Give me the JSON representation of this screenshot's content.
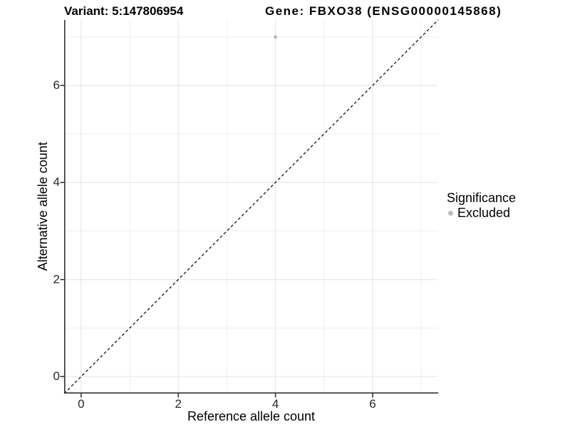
{
  "chart_data": {
    "type": "scatter",
    "title_left": "Variant: 5:147806954",
    "title_right": "Gene: FBXO38 (ENSG00000145868)",
    "xlabel": "Reference allele count",
    "ylabel": "Alternative allele count",
    "xlim": [
      -0.35,
      7.35
    ],
    "ylim": [
      -0.35,
      7.35
    ],
    "x_ticks": [
      0,
      2,
      4,
      6
    ],
    "y_ticks": [
      0,
      2,
      4,
      6
    ],
    "x_minor_gridlines": [
      1,
      3,
      5,
      7
    ],
    "y_minor_gridlines": [
      1,
      3,
      5,
      7
    ],
    "grid": "on",
    "identity_line": {
      "style": "dashed",
      "slope": 1,
      "color": "#000000"
    },
    "series": [
      {
        "name": "Excluded",
        "color": "#BEBEBE",
        "points": [
          {
            "x": 4,
            "y": 7
          }
        ]
      }
    ],
    "legend": {
      "title": "Significance",
      "position": "right",
      "entries": [
        {
          "label": "Excluded",
          "color": "#BEBEBE",
          "marker": "circle-icon"
        }
      ]
    },
    "colors": {
      "background": "#FFFFFF",
      "grid_major": "#E5E5E5",
      "grid_minor": "#EFEFEF",
      "axis_line": "#333333",
      "tick_text": "#262626"
    }
  }
}
